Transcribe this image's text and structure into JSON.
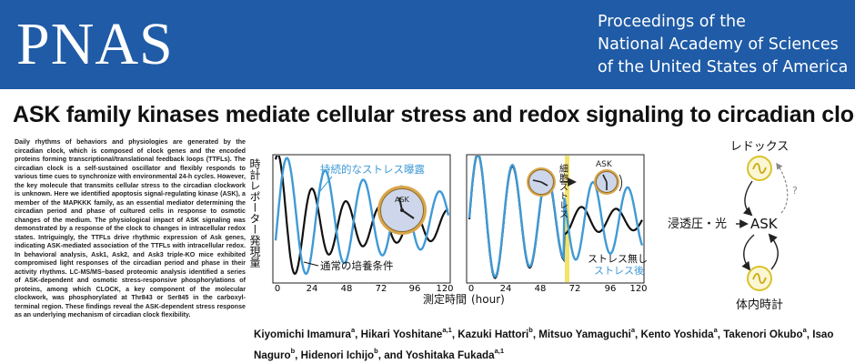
{
  "header": {
    "logo": "PNAS",
    "proceedings_lines": [
      "Proceedings of the",
      "National Academy of Sciences",
      "of the United States of America"
    ]
  },
  "article": {
    "title": "ASK family kinases mediate cellular stress and redox signaling to circadian clock",
    "abstract": "Daily rhythms of behaviors and physiologies are generated by the circadian clock, which is composed of clock genes and the encoded proteins forming transcriptional/translational feedback loops (TTFLs). The circadian clock is a self-sustained oscillator and flexibly responds to various time cues to synchronize with environmental 24-h cycles. However, the key molecule that transmits cellular stress to the circadian clockwork is unknown. Here we identified apoptosis signal-regulating kinase (ASK), a member of the MAPKKK family, as an essential mediator determining the circadian period and phase of cultured cells in response to osmotic changes of the medium. The physiological impact of ASK signaling was demonstrated by a response of the clock to changes in intracellular redox states. Intriguingly, the TTFLs drive rhythmic expression of Ask genes, indicating ASK-mediated association of the TTFLs with intracellular redox. In behavioral analysis, Ask1, Ask2, and Ask3 triple-KO mice exhibited compromised light responses of the circadian period and phase in their activity rhythms. LC-MS/MS–based proteomic analysis identified a series of ASK-dependent and osmotic stress-responsive phosphorylations of proteins, among which CLOCK, a key component of the molecular clockwork, was phosphorylated at Thr843 or Ser845 in the carboxyl-terminal region. These findings reveal the ASK-dependent stress response as an underlying mechanism of circadian clock flexibility.",
    "authors": [
      {
        "name": "Kiyomichi Imamura",
        "aff": "a"
      },
      {
        "name": "Hikari Yoshitane",
        "aff": "a,1"
      },
      {
        "name": "Kazuki Hattori",
        "aff": "b"
      },
      {
        "name": "Mitsuo Yamaguchi",
        "aff": "a"
      },
      {
        "name": "Kento Yoshida",
        "aff": "a"
      },
      {
        "name": "Takenori Okubo",
        "aff": "a"
      },
      {
        "name": "Isao Naguro",
        "aff": "b"
      },
      {
        "name": "Hidenori Ichijo",
        "aff": "b"
      },
      {
        "name": "Yoshitaka Fukada",
        "aff": "a,1"
      }
    ],
    "authors_joiner": "and"
  },
  "figure": {
    "y_label": "時計レポーター発現量",
    "x_label": "測定時間",
    "x_unit": "(hour)",
    "x_ticks": [
      "0",
      "24",
      "48",
      "72",
      "96",
      "120"
    ],
    "left_panel": {
      "label_sustained": "持続的なストレス曝露",
      "label_normal": "通常の培養条件",
      "clock_label": "ASK"
    },
    "right_panel": {
      "stress_label": "細胞ストレス",
      "label_without": "ストレス無し",
      "label_after": "ストレス後",
      "clock_label": "ASK"
    },
    "diagram": {
      "redox": "レドックス",
      "osmotic_light": "浸透圧・光",
      "ask": "ASK",
      "clock": "体内時計",
      "question": "?"
    },
    "colors": {
      "stress_curve": "#3f9ad6",
      "normal_curve": "#111111",
      "stress_band": "#f3e26b",
      "wave_circle": "#d9c22c"
    }
  },
  "chart_data": [
    {
      "type": "line",
      "title": "",
      "xlabel": "測定時間 (hour)",
      "ylabel": "時計レポーター発現量",
      "xlim": [
        0,
        120
      ],
      "x_ticks": [
        0,
        24,
        48,
        72,
        96,
        120
      ],
      "series": [
        {
          "name": "持続的なストレス曝露",
          "period": 26.5,
          "peak_time": 8
        },
        {
          "name": "通常の培養条件",
          "period": 23.5,
          "peak_time": 2
        }
      ]
    },
    {
      "type": "line",
      "title": "",
      "xlabel": "測定時間 (hour)",
      "ylabel": "時計レポーター発現量",
      "xlim": [
        0,
        120
      ],
      "x_ticks": [
        0,
        24,
        48,
        72,
        96,
        120
      ],
      "stress_time": 66,
      "series": [
        {
          "name": "ストレス無し",
          "period": 24,
          "peak_time": 6
        },
        {
          "name": "ストレス後",
          "period": 24,
          "peak_time": 6,
          "phase_shift_after_stress": 8
        }
      ]
    }
  ]
}
